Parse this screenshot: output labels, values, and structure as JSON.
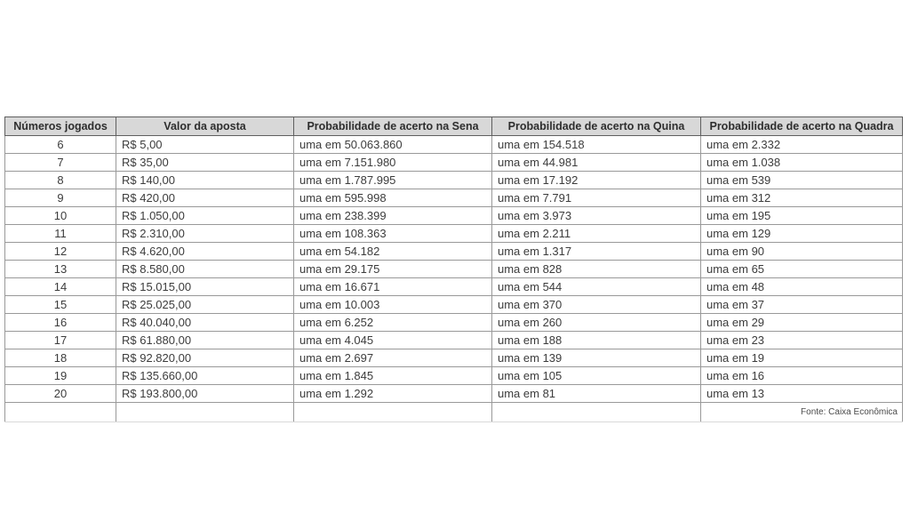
{
  "page": {
    "background": "#ffffff"
  },
  "chart_data": {
    "type": "table",
    "columns": [
      "Números jogados",
      "Valor da aposta",
      "Probabilidade de acerto na Sena",
      "Probabilidade de acerto na Quina",
      "Probabilidade de acerto na Quadra"
    ],
    "rows": [
      [
        "6",
        "R$ 5,00",
        "uma em 50.063.860",
        "uma em 154.518",
        "uma em 2.332"
      ],
      [
        "7",
        "R$ 35,00",
        "uma em 7.151.980",
        "uma em 44.981",
        "uma em 1.038"
      ],
      [
        "8",
        "R$ 140,00",
        "uma em 1.787.995",
        "uma em 17.192",
        "uma em 539"
      ],
      [
        "9",
        "R$ 420,00",
        "uma em 595.998",
        "uma em 7.791",
        "uma em 312"
      ],
      [
        "10",
        "R$ 1.050,00",
        "uma em 238.399",
        "uma em 3.973",
        "uma em 195"
      ],
      [
        "11",
        "R$ 2.310,00",
        "uma em 108.363",
        "uma em 2.211",
        "uma em 129"
      ],
      [
        "12",
        "R$ 4.620,00",
        "uma em 54.182",
        "uma em 1.317",
        "uma em 90"
      ],
      [
        "13",
        "R$ 8.580,00",
        "uma em 29.175",
        "uma em 828",
        "uma em 65"
      ],
      [
        "14",
        "R$ 15.015,00",
        "uma em 16.671",
        "uma em 544",
        "uma em 48"
      ],
      [
        "15",
        "R$ 25.025,00",
        "uma em 10.003",
        "uma em 370",
        "uma em 37"
      ],
      [
        "16",
        "R$ 40.040,00",
        "uma em 6.252",
        "uma em 260",
        "uma em 29"
      ],
      [
        "17",
        "R$ 61.880,00",
        "uma em 4.045",
        "uma em 188",
        "uma em 23"
      ],
      [
        "18",
        "R$ 92.820,00",
        "uma em 2.697",
        "uma em 139",
        "uma em 19"
      ],
      [
        "19",
        "R$ 135.660,00",
        "uma em 1.845",
        "uma em 105",
        "uma em 16"
      ],
      [
        "20",
        "R$ 193.800,00",
        "uma em 1.292",
        "uma em 81",
        "uma em 13"
      ]
    ],
    "source": "Fonte: Caixa Econômica",
    "colors": {
      "header_bg": "#d8d8d8",
      "border": "#999999",
      "header_border": "#5f5f5f",
      "text": "#3c3c3c"
    }
  }
}
